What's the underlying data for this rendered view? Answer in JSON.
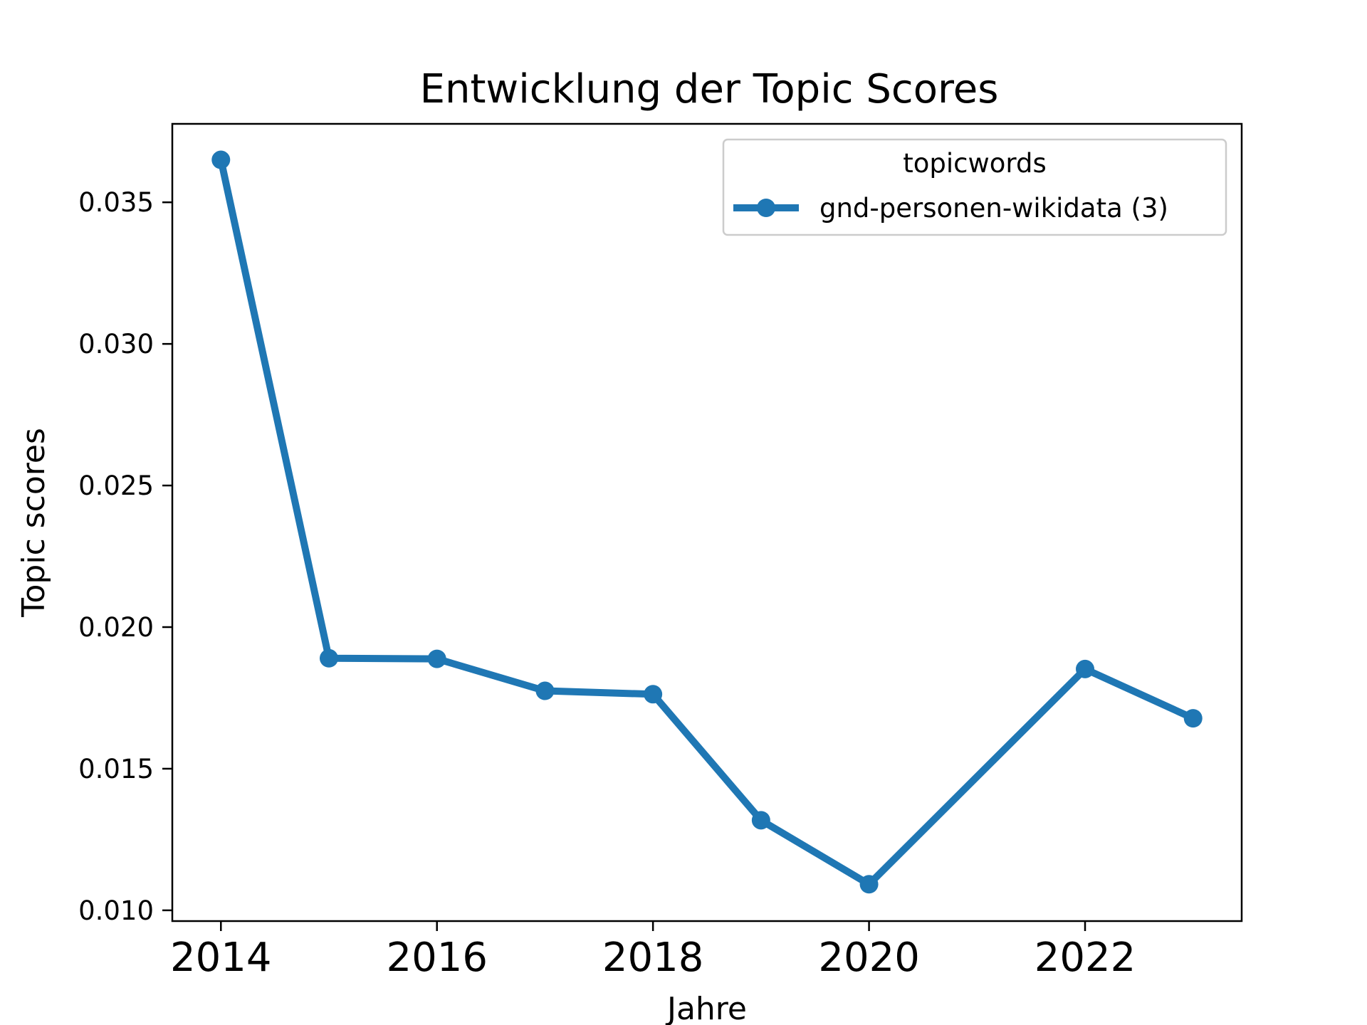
{
  "chart_data": {
    "type": "line",
    "title": "Entwicklung der Topic Scores",
    "xlabel": "Jahre",
    "ylabel": "Topic scores",
    "xlim": [
      2013.55,
      2023.45
    ],
    "ylim": [
      0.00962,
      0.03777
    ],
    "x_ticks": [
      2014,
      2016,
      2018,
      2020,
      2022
    ],
    "x_tick_labels": [
      "2014",
      "2016",
      "2018",
      "2020",
      "2022"
    ],
    "y_ticks": [
      0.01,
      0.015,
      0.02,
      0.025,
      0.03,
      0.035
    ],
    "y_tick_labels": [
      "0.010",
      "0.015",
      "0.020",
      "0.025",
      "0.030",
      "0.035"
    ],
    "grid": false,
    "legend": {
      "title": "topicwords",
      "position": "top-right"
    },
    "series": [
      {
        "name": "gnd-personen-wikidata (3)",
        "color": "#1f77b4",
        "marker": "circle",
        "x": [
          2014,
          2015,
          2016,
          2017,
          2018,
          2019,
          2020,
          2022,
          2023
        ],
        "y": [
          0.0365,
          0.0189,
          0.01888,
          0.01775,
          0.01763,
          0.01318,
          0.01092,
          0.01852,
          0.01678
        ]
      }
    ]
  }
}
